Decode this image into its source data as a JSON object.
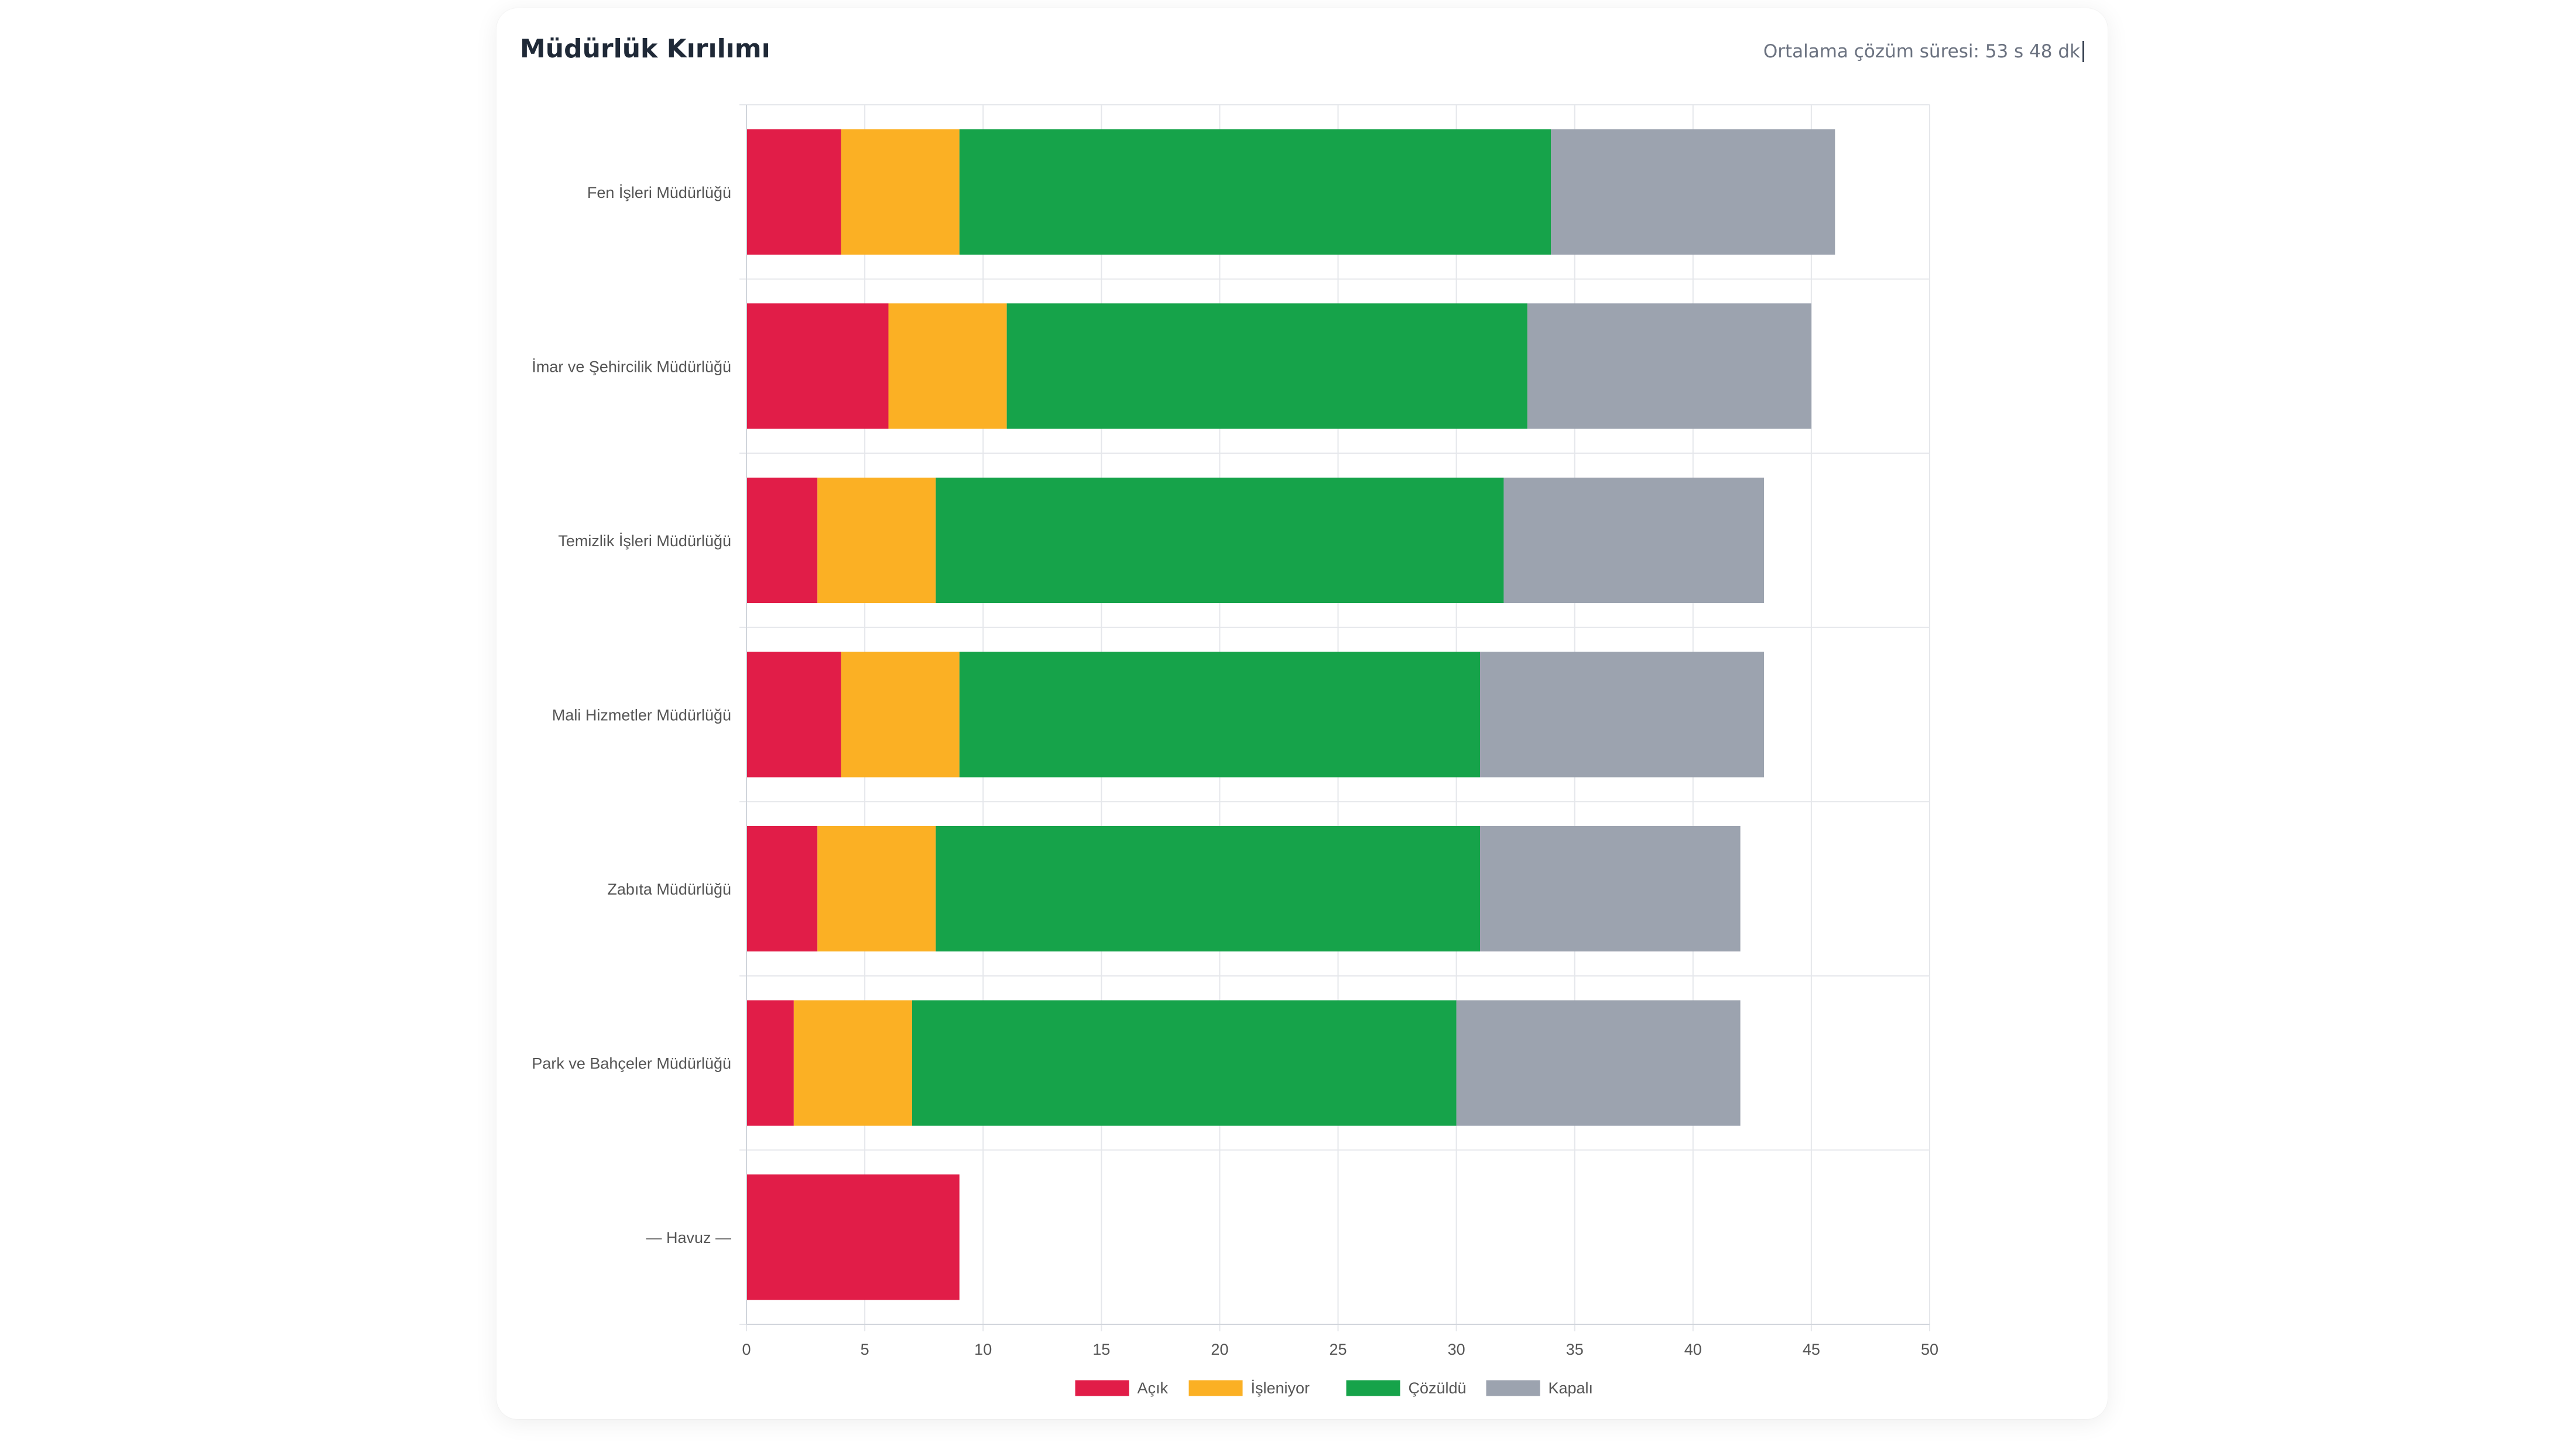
{
  "card": {
    "title": "Müdürlük Kırılımı",
    "avg_label": "Ortalama çözüm süresi: 53 s 48 dk"
  },
  "colors": {
    "Açık": "#e11d48",
    "İşleniyor": "#fbb024",
    "Çözüldü": "#16a34a",
    "Kapalı": "#9ca3af",
    "grid": "#e5e7eb",
    "tick_text": "#555555"
  },
  "chart_data": {
    "type": "bar",
    "orientation": "horizontal",
    "stacked": true,
    "title": "Müdürlük Kırılımı",
    "categories": [
      "Fen İşleri Müdürlüğü",
      "İmar ve Şehircilik Müdürlüğü",
      "Temizlik İşleri Müdürlüğü",
      "Mali Hizmetler Müdürlüğü",
      "Zabıta Müdürlüğü",
      "Park ve Bahçeler Müdürlüğü",
      "— Havuz —"
    ],
    "series": [
      {
        "name": "Açık",
        "values": [
          4,
          6,
          3,
          4,
          3,
          2,
          9
        ]
      },
      {
        "name": "İşleniyor",
        "values": [
          5,
          5,
          5,
          5,
          5,
          5,
          0
        ]
      },
      {
        "name": "Çözüldü",
        "values": [
          25,
          22,
          24,
          22,
          23,
          23,
          0
        ]
      },
      {
        "name": "Kapalı",
        "values": [
          12,
          12,
          11,
          12,
          11,
          12,
          0
        ]
      }
    ],
    "xlim": [
      0,
      50
    ],
    "xticks": [
      "0",
      "5",
      "10",
      "15",
      "20",
      "25",
      "30",
      "35",
      "40",
      "45",
      "50"
    ],
    "xlabel": "",
    "ylabel": "",
    "grid": true,
    "legend": "bottom"
  }
}
